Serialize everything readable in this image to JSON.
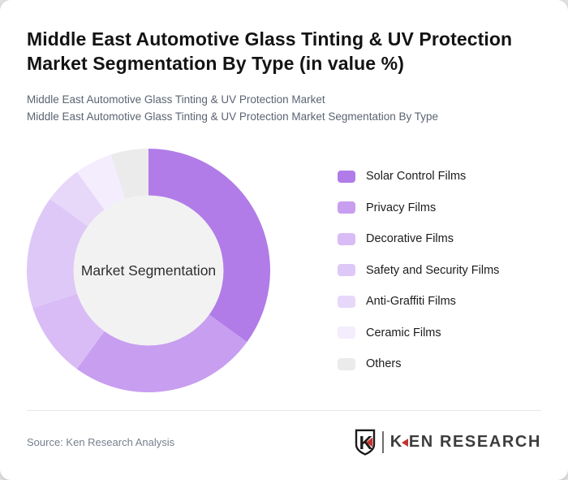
{
  "page": {
    "background_color": "#e2e2e2",
    "card_color": "#ffffff"
  },
  "header": {
    "title_line1": "Middle East Automotive Glass Tinting & UV Protection",
    "title_line2": "Market Segmentation By Type (in value %)",
    "subtitle1": "Middle East Automotive Glass Tinting & UV Protection Market",
    "subtitle2": "Middle East Automotive Glass Tinting & UV Protection Market Segmentation By Type"
  },
  "chart_data": {
    "type": "pie",
    "variant": "donut",
    "title": "Middle East Automotive Glass Tinting & UV Protection Market Segmentation By Type (in value %)",
    "center_label": "Market Segmentation",
    "unit": "%",
    "categories": [
      "Solar Control Films",
      "Privacy Films",
      "Decorative Films",
      "Safety and Security Films",
      "Anti-Graffiti Films",
      "Ceramic Films",
      "Others"
    ],
    "values": [
      35,
      25,
      10,
      15,
      5,
      5,
      5
    ],
    "colors": [
      "#b17ce8",
      "#c79ef0",
      "#d9bcf5",
      "#ddc8f7",
      "#e7d8fa",
      "#f4edfd",
      "#ebebeb"
    ],
    "start_angle_deg": 0,
    "direction": "clockwise",
    "outer_radius": 150,
    "inner_radius": 92,
    "inner_hole_color": "#f2f2f2",
    "legend_position": "right"
  },
  "footer": {
    "source": "Source: Ken Research Analysis",
    "logo": {
      "shield_letter": "K",
      "text_k": "K",
      "text_rest": "EN RESEARCH",
      "accent_color": "#c4332e"
    }
  }
}
